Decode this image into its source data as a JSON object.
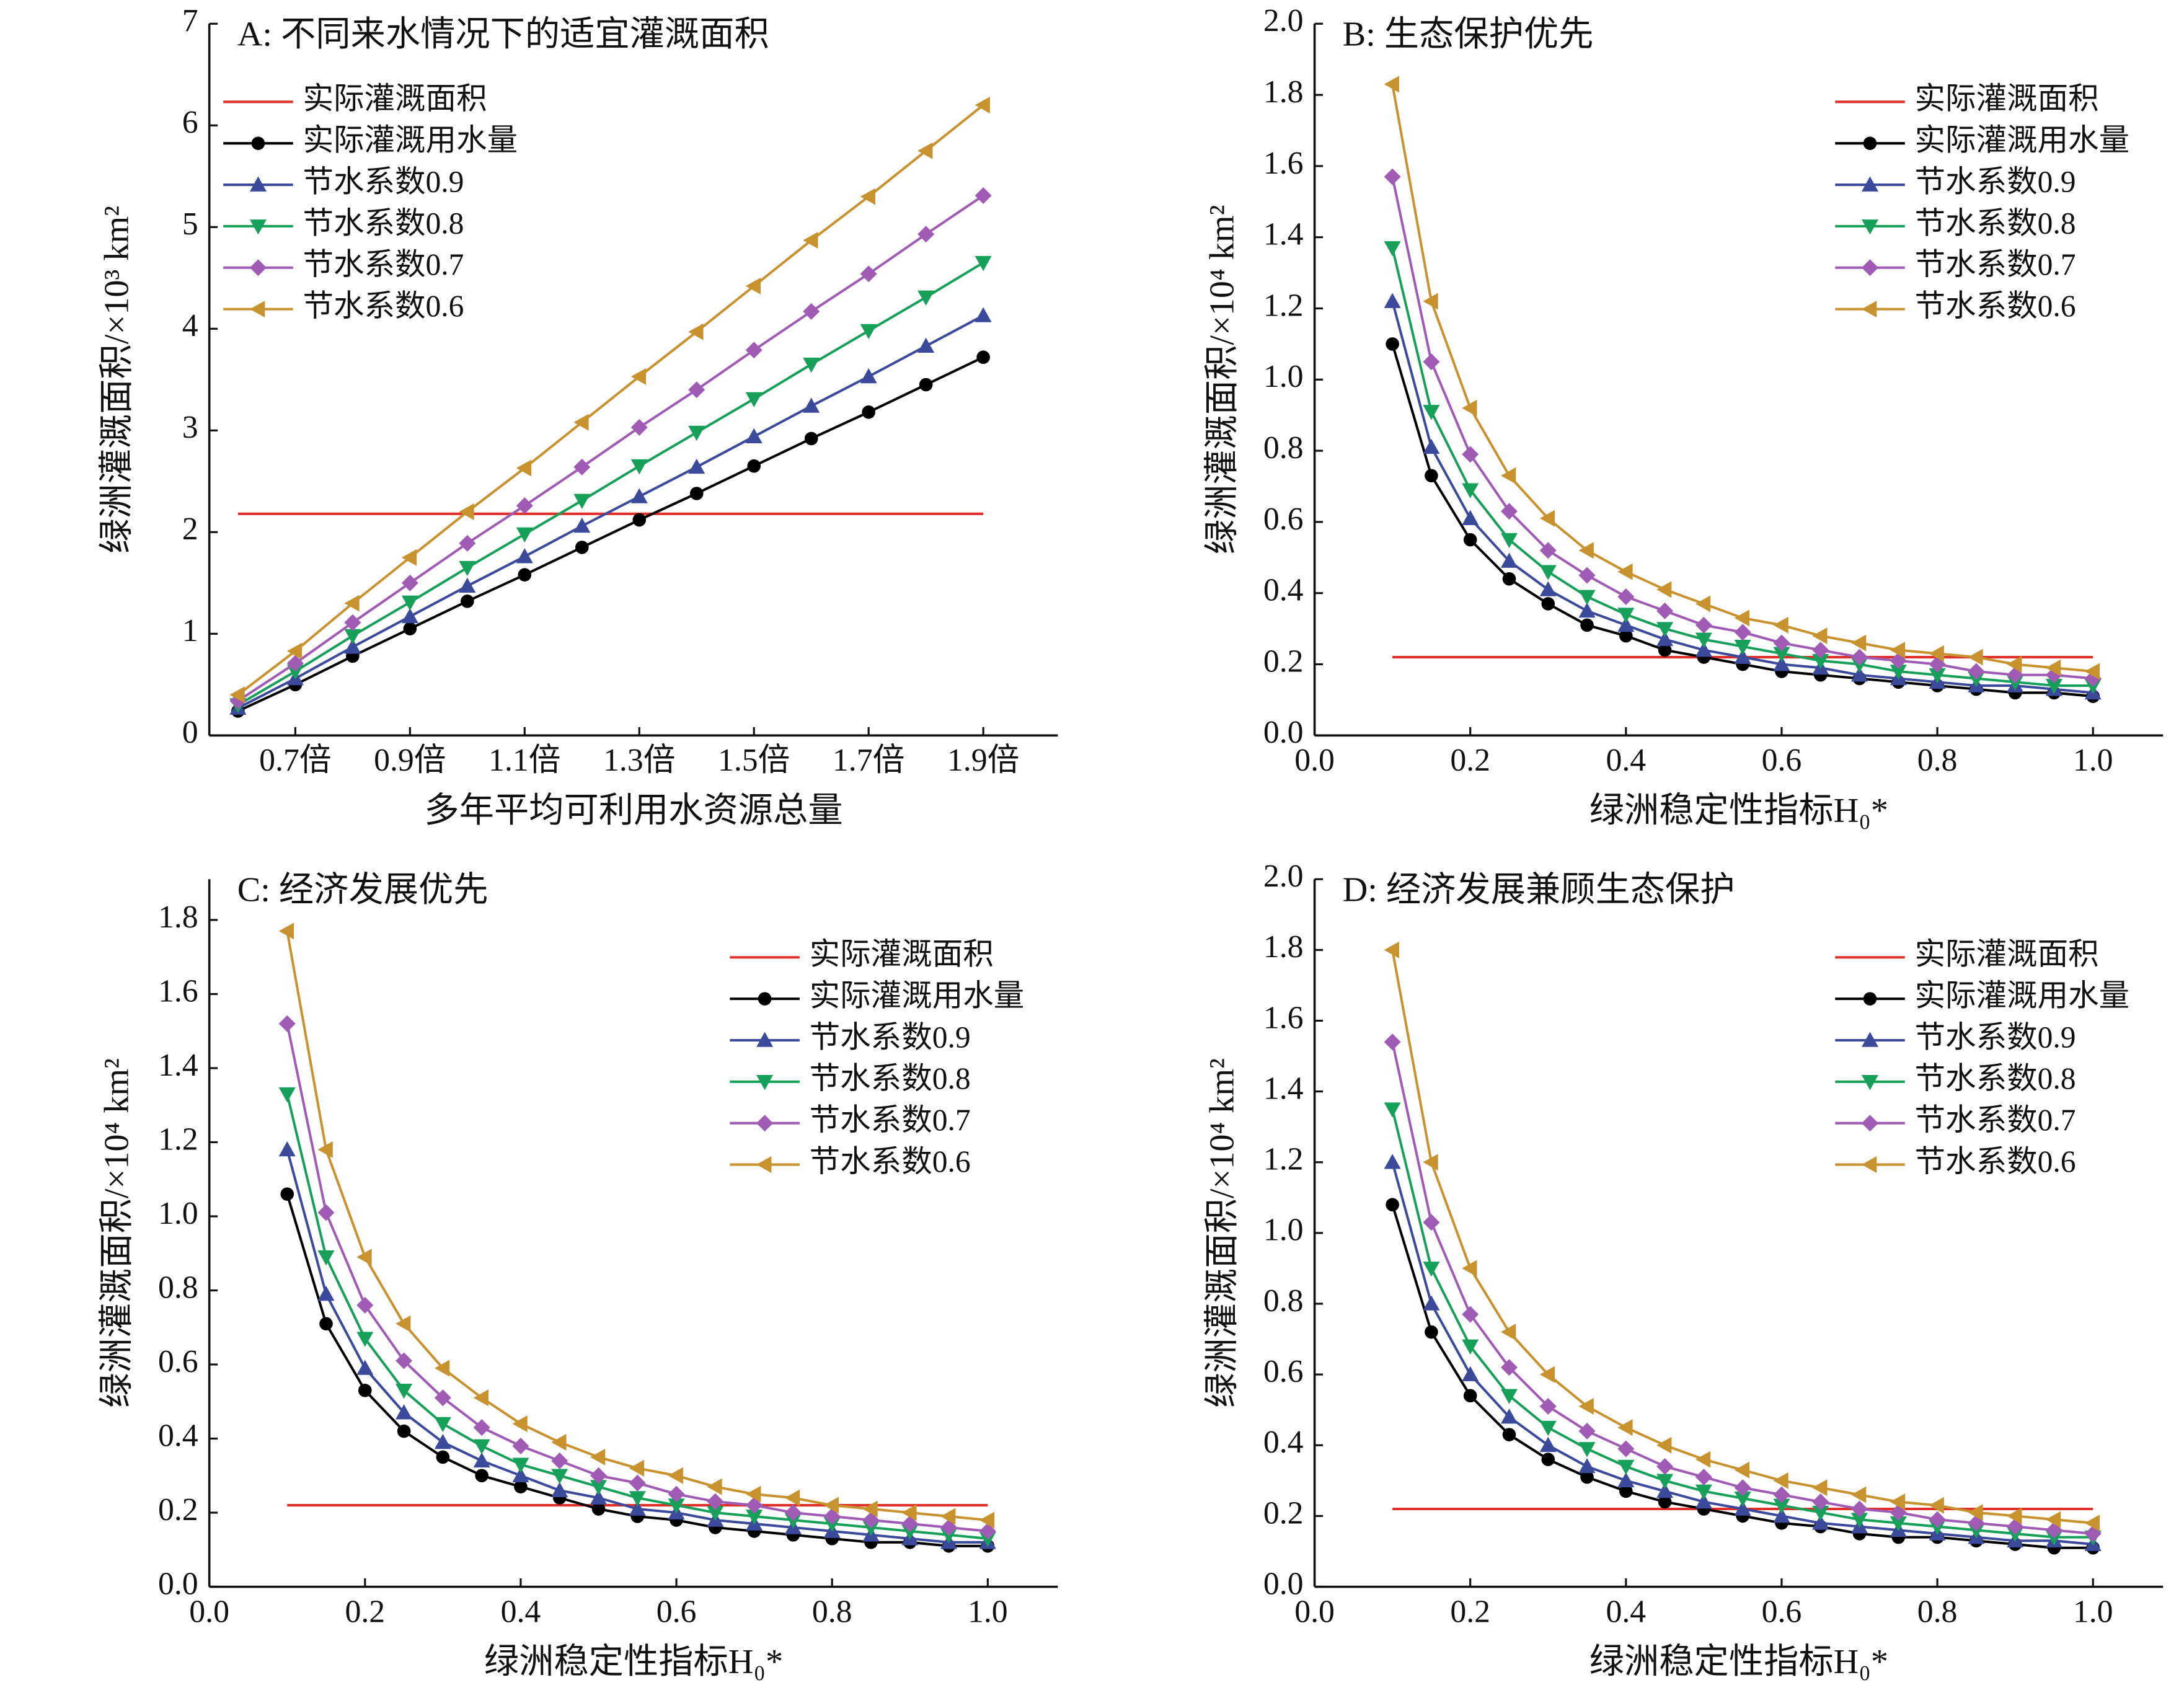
{
  "chart_data": [
    {
      "type": "line",
      "title": "A: 不同来水情况下的适宜灌溉面积",
      "xlabel": "多年平均可利用水资源总量",
      "ylabel": "绿洲灌溉面积/×10³ km²",
      "x": [
        0.6,
        0.7,
        0.8,
        0.9,
        1.0,
        1.1,
        1.2,
        1.3,
        1.4,
        1.5,
        1.6,
        1.7,
        1.8,
        1.9
      ],
      "xlim": [
        0.55,
        2.03
      ],
      "xticks": [
        {
          "value": 0.7,
          "label": "0.7倍"
        },
        {
          "value": 0.9,
          "label": "0.9倍"
        },
        {
          "value": 1.1,
          "label": "1.1倍"
        },
        {
          "value": 1.3,
          "label": "1.3倍"
        },
        {
          "value": 1.5,
          "label": "1.5倍"
        },
        {
          "value": 1.7,
          "label": "1.7倍"
        },
        {
          "value": 1.9,
          "label": "1.9倍"
        }
      ],
      "ylim": [
        0,
        7
      ],
      "yticks": [
        0,
        1,
        2,
        3,
        4,
        5,
        6,
        7
      ],
      "legend": "upper left",
      "series": [
        {
          "name": "实际灌溉面积",
          "color": "#e0302a",
          "marker": "none",
          "values": [
            2.18,
            2.18,
            2.18,
            2.18,
            2.18,
            2.18,
            2.18,
            2.18,
            2.18,
            2.18,
            2.18,
            2.18,
            2.18,
            2.18
          ]
        },
        {
          "name": "实际灌溉用水量",
          "color": "#000000",
          "marker": "circle",
          "values": [
            0.24,
            0.5,
            0.78,
            1.05,
            1.32,
            1.58,
            1.85,
            2.12,
            2.38,
            2.65,
            2.92,
            3.18,
            3.45,
            3.72
          ]
        },
        {
          "name": "节水系数0.9",
          "color": "#3b4a9a",
          "marker": "triangle-up",
          "values": [
            0.27,
            0.56,
            0.87,
            1.17,
            1.47,
            1.76,
            2.06,
            2.35,
            2.64,
            2.94,
            3.24,
            3.53,
            3.83,
            4.13
          ]
        },
        {
          "name": "节水系数0.8",
          "color": "#17a05a",
          "marker": "triangle-down",
          "values": [
            0.3,
            0.63,
            0.98,
            1.31,
            1.65,
            1.98,
            2.31,
            2.65,
            2.98,
            3.31,
            3.65,
            3.98,
            4.31,
            4.65
          ]
        },
        {
          "name": "节水系数0.7",
          "color": "#a05bb5",
          "marker": "diamond",
          "values": [
            0.34,
            0.71,
            1.11,
            1.5,
            1.89,
            2.26,
            2.64,
            3.03,
            3.4,
            3.79,
            4.17,
            4.54,
            4.93,
            5.31
          ]
        },
        {
          "name": "节水系数0.6",
          "color": "#c8932f",
          "marker": "triangle-left",
          "values": [
            0.4,
            0.83,
            1.3,
            1.75,
            2.2,
            2.63,
            3.08,
            3.53,
            3.97,
            4.42,
            4.87,
            5.3,
            5.75,
            6.2
          ]
        }
      ]
    },
    {
      "type": "line",
      "title": "B: 生态保护优先",
      "xlabel": "绿洲稳定性指标H₀*",
      "ylabel": "绿洲灌溉面积/×10⁴ km²",
      "x": [
        0.1,
        0.15,
        0.2,
        0.25,
        0.3,
        0.35,
        0.4,
        0.45,
        0.5,
        0.55,
        0.6,
        0.65,
        0.7,
        0.75,
        0.8,
        0.85,
        0.9,
        0.95,
        1.0
      ],
      "xlim": [
        0,
        1.09
      ],
      "xticks": [
        {
          "value": 0,
          "label": "0.0"
        },
        {
          "value": 0.2,
          "label": "0.2"
        },
        {
          "value": 0.4,
          "label": "0.4"
        },
        {
          "value": 0.6,
          "label": "0.6"
        },
        {
          "value": 0.8,
          "label": "0.8"
        },
        {
          "value": 1,
          "label": "1.0"
        }
      ],
      "ylim": [
        0,
        2
      ],
      "yticks": [
        {
          "value": 0,
          "label": "0.0"
        },
        {
          "value": 0.2,
          "label": "0.2"
        },
        {
          "value": 0.4,
          "label": "0.4"
        },
        {
          "value": 0.6,
          "label": "0.6"
        },
        {
          "value": 0.8,
          "label": "0.8"
        },
        {
          "value": 1,
          "label": "1.0"
        },
        {
          "value": 1.2,
          "label": "1.2"
        },
        {
          "value": 1.4,
          "label": "1.4"
        },
        {
          "value": 1.6,
          "label": "1.6"
        },
        {
          "value": 1.8,
          "label": "1.8"
        },
        {
          "value": 2,
          "label": "2.0"
        }
      ],
      "legend": "upper right",
      "series": [
        {
          "name": "实际灌溉面积",
          "color": "#e0302a",
          "marker": "none",
          "values": [
            0.22,
            0.22,
            0.22,
            0.22,
            0.22,
            0.22,
            0.22,
            0.22,
            0.22,
            0.22,
            0.22,
            0.22,
            0.22,
            0.22,
            0.22,
            0.22,
            0.22,
            0.22,
            0.22
          ]
        },
        {
          "name": "实际灌溉用水量",
          "color": "#000000",
          "marker": "circle",
          "values": [
            1.1,
            0.73,
            0.55,
            0.44,
            0.37,
            0.31,
            0.28,
            0.24,
            0.22,
            0.2,
            0.18,
            0.17,
            0.16,
            0.15,
            0.14,
            0.13,
            0.12,
            0.12,
            0.11
          ]
        },
        {
          "name": "节水系数0.9",
          "color": "#3b4a9a",
          "marker": "triangle-up",
          "values": [
            1.22,
            0.81,
            0.61,
            0.49,
            0.41,
            0.35,
            0.31,
            0.27,
            0.24,
            0.22,
            0.2,
            0.19,
            0.17,
            0.16,
            0.15,
            0.14,
            0.14,
            0.13,
            0.12
          ]
        },
        {
          "name": "节水系数0.8",
          "color": "#17a05a",
          "marker": "triangle-down",
          "values": [
            1.37,
            0.91,
            0.69,
            0.55,
            0.46,
            0.39,
            0.34,
            0.3,
            0.27,
            0.25,
            0.23,
            0.21,
            0.2,
            0.18,
            0.17,
            0.16,
            0.15,
            0.14,
            0.14
          ]
        },
        {
          "name": "节水系数0.7",
          "color": "#a05bb5",
          "marker": "diamond",
          "values": [
            1.57,
            1.05,
            0.79,
            0.63,
            0.52,
            0.45,
            0.39,
            0.35,
            0.31,
            0.29,
            0.26,
            0.24,
            0.22,
            0.21,
            0.2,
            0.18,
            0.17,
            0.17,
            0.16
          ]
        },
        {
          "name": "节水系数0.6",
          "color": "#c8932f",
          "marker": "triangle-left",
          "values": [
            1.83,
            1.22,
            0.92,
            0.73,
            0.61,
            0.52,
            0.46,
            0.41,
            0.37,
            0.33,
            0.31,
            0.28,
            0.26,
            0.24,
            0.23,
            0.22,
            0.2,
            0.19,
            0.18
          ]
        }
      ]
    },
    {
      "type": "line",
      "title": "C: 经济发展优先",
      "xlabel": "绿洲稳定性指标H₀*",
      "ylabel": "绿洲灌溉面积/×10⁴ km²",
      "x": [
        0.1,
        0.15,
        0.2,
        0.25,
        0.3,
        0.35,
        0.4,
        0.45,
        0.5,
        0.55,
        0.6,
        0.65,
        0.7,
        0.75,
        0.8,
        0.85,
        0.9,
        0.95,
        1.0
      ],
      "xlim": [
        0,
        1.09
      ],
      "xticks": [
        {
          "value": 0,
          "label": "0.0"
        },
        {
          "value": 0.2,
          "label": "0.2"
        },
        {
          "value": 0.4,
          "label": "0.4"
        },
        {
          "value": 0.6,
          "label": "0.6"
        },
        {
          "value": 0.8,
          "label": "0.8"
        },
        {
          "value": 1,
          "label": "1.0"
        }
      ],
      "ylim": [
        0,
        1.91
      ],
      "yticks": [
        {
          "value": 0,
          "label": "0.0"
        },
        {
          "value": 0.2,
          "label": "0.2"
        },
        {
          "value": 0.4,
          "label": "0.4"
        },
        {
          "value": 0.6,
          "label": "0.6"
        },
        {
          "value": 0.8,
          "label": "0.8"
        },
        {
          "value": 1,
          "label": "1.0"
        },
        {
          "value": 1.2,
          "label": "1.2"
        },
        {
          "value": 1.4,
          "label": "1.4"
        },
        {
          "value": 1.6,
          "label": "1.6"
        },
        {
          "value": 1.8,
          "label": "1.8"
        }
      ],
      "legend": "upper right",
      "series": [
        {
          "name": "实际灌溉面积",
          "color": "#e0302a",
          "marker": "none",
          "values": [
            0.22,
            0.22,
            0.22,
            0.22,
            0.22,
            0.22,
            0.22,
            0.22,
            0.22,
            0.22,
            0.22,
            0.22,
            0.22,
            0.22,
            0.22,
            0.22,
            0.22,
            0.22,
            0.22
          ]
        },
        {
          "name": "实际灌溉用水量",
          "color": "#000000",
          "marker": "circle",
          "values": [
            1.06,
            0.71,
            0.53,
            0.42,
            0.35,
            0.3,
            0.27,
            0.24,
            0.21,
            0.19,
            0.18,
            0.16,
            0.15,
            0.14,
            0.13,
            0.12,
            0.12,
            0.11,
            0.11
          ]
        },
        {
          "name": "节水系数0.9",
          "color": "#3b4a9a",
          "marker": "triangle-up",
          "values": [
            1.18,
            0.79,
            0.59,
            0.47,
            0.39,
            0.34,
            0.3,
            0.26,
            0.24,
            0.21,
            0.2,
            0.18,
            0.17,
            0.16,
            0.15,
            0.14,
            0.13,
            0.12,
            0.12
          ]
        },
        {
          "name": "节水系数0.8",
          "color": "#17a05a",
          "marker": "triangle-down",
          "values": [
            1.33,
            0.89,
            0.67,
            0.53,
            0.44,
            0.38,
            0.33,
            0.3,
            0.27,
            0.24,
            0.22,
            0.2,
            0.19,
            0.18,
            0.17,
            0.16,
            0.15,
            0.14,
            0.13
          ]
        },
        {
          "name": "节水系数0.7",
          "color": "#a05bb5",
          "marker": "diamond",
          "values": [
            1.52,
            1.01,
            0.76,
            0.61,
            0.51,
            0.43,
            0.38,
            0.34,
            0.3,
            0.28,
            0.25,
            0.23,
            0.22,
            0.2,
            0.19,
            0.18,
            0.17,
            0.16,
            0.15
          ]
        },
        {
          "name": "节水系数0.6",
          "color": "#c8932f",
          "marker": "triangle-left",
          "values": [
            1.77,
            1.18,
            0.89,
            0.71,
            0.59,
            0.51,
            0.44,
            0.39,
            0.35,
            0.32,
            0.3,
            0.27,
            0.25,
            0.24,
            0.22,
            0.21,
            0.2,
            0.19,
            0.18
          ]
        }
      ]
    },
    {
      "type": "line",
      "title": "D: 经济发展兼顾生态保护",
      "xlabel": "绿洲稳定性指标H₀*",
      "ylabel": "绿洲灌溉面积/×10⁴ km²",
      "x": [
        0.1,
        0.15,
        0.2,
        0.25,
        0.3,
        0.35,
        0.4,
        0.45,
        0.5,
        0.55,
        0.6,
        0.65,
        0.7,
        0.75,
        0.8,
        0.85,
        0.9,
        0.95,
        1.0
      ],
      "xlim": [
        0,
        1.09
      ],
      "xticks": [
        {
          "value": 0,
          "label": "0.0"
        },
        {
          "value": 0.2,
          "label": "0.2"
        },
        {
          "value": 0.4,
          "label": "0.4"
        },
        {
          "value": 0.6,
          "label": "0.6"
        },
        {
          "value": 0.8,
          "label": "0.8"
        },
        {
          "value": 1,
          "label": "1.0"
        }
      ],
      "ylim": [
        0,
        2
      ],
      "yticks": [
        {
          "value": 0,
          "label": "0.0"
        },
        {
          "value": 0.2,
          "label": "0.2"
        },
        {
          "value": 0.4,
          "label": "0.4"
        },
        {
          "value": 0.6,
          "label": "0.6"
        },
        {
          "value": 0.8,
          "label": "0.8"
        },
        {
          "value": 1,
          "label": "1.0"
        },
        {
          "value": 1.2,
          "label": "1.2"
        },
        {
          "value": 1.4,
          "label": "1.4"
        },
        {
          "value": 1.6,
          "label": "1.6"
        },
        {
          "value": 1.8,
          "label": "1.8"
        },
        {
          "value": 2,
          "label": "2.0"
        }
      ],
      "legend": "upper right",
      "series": [
        {
          "name": "实际灌溉面积",
          "color": "#e0302a",
          "marker": "none",
          "values": [
            0.22,
            0.22,
            0.22,
            0.22,
            0.22,
            0.22,
            0.22,
            0.22,
            0.22,
            0.22,
            0.22,
            0.22,
            0.22,
            0.22,
            0.22,
            0.22,
            0.22,
            0.22,
            0.22
          ]
        },
        {
          "name": "实际灌溉用水量",
          "color": "#000000",
          "marker": "circle",
          "values": [
            1.08,
            0.72,
            0.54,
            0.43,
            0.36,
            0.31,
            0.27,
            0.24,
            0.22,
            0.2,
            0.18,
            0.17,
            0.15,
            0.14,
            0.14,
            0.13,
            0.12,
            0.11,
            0.11
          ]
        },
        {
          "name": "节水系数0.9",
          "color": "#3b4a9a",
          "marker": "triangle-up",
          "values": [
            1.2,
            0.8,
            0.6,
            0.48,
            0.4,
            0.34,
            0.3,
            0.27,
            0.24,
            0.22,
            0.2,
            0.18,
            0.17,
            0.16,
            0.15,
            0.14,
            0.13,
            0.13,
            0.12
          ]
        },
        {
          "name": "节水系数0.8",
          "color": "#17a05a",
          "marker": "triangle-down",
          "values": [
            1.35,
            0.9,
            0.68,
            0.54,
            0.45,
            0.39,
            0.34,
            0.3,
            0.27,
            0.25,
            0.23,
            0.21,
            0.19,
            0.18,
            0.17,
            0.16,
            0.15,
            0.14,
            0.14
          ]
        },
        {
          "name": "节水系数0.7",
          "color": "#a05bb5",
          "marker": "diamond",
          "values": [
            1.54,
            1.03,
            0.77,
            0.62,
            0.51,
            0.44,
            0.39,
            0.34,
            0.31,
            0.28,
            0.26,
            0.24,
            0.22,
            0.21,
            0.19,
            0.18,
            0.17,
            0.16,
            0.15
          ]
        },
        {
          "name": "节水系数0.6",
          "color": "#c8932f",
          "marker": "triangle-left",
          "values": [
            1.8,
            1.2,
            0.9,
            0.72,
            0.6,
            0.51,
            0.45,
            0.4,
            0.36,
            0.33,
            0.3,
            0.28,
            0.26,
            0.24,
            0.23,
            0.21,
            0.2,
            0.19,
            0.18
          ]
        }
      ]
    }
  ]
}
